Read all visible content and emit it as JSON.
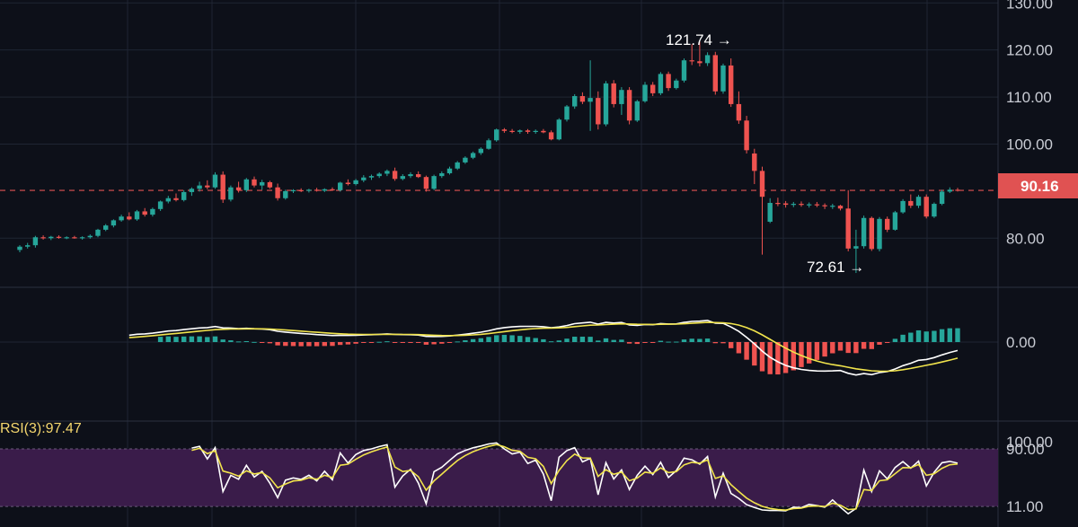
{
  "chart_data": [
    {
      "type": "candlestick",
      "panel": "price",
      "y_ticks": [
        "130.00",
        "120.00",
        "110.00",
        "100.00",
        "80.00"
      ],
      "y_tick_values": [
        130,
        120,
        110,
        100,
        80
      ],
      "ylim": [
        73,
        131
      ],
      "grid": true,
      "last_price": "90.16",
      "last_price_value": 90.16,
      "annotations": [
        {
          "text": "121.74 →",
          "value": 121.74,
          "kind": "high"
        },
        {
          "text": "72.61 →",
          "value": 72.61,
          "kind": "low"
        }
      ],
      "candles": [
        [
          77.5,
          78.5,
          77,
          78.2
        ],
        [
          78.2,
          79,
          77.8,
          78.5
        ],
        [
          78.5,
          80.5,
          78,
          80.2
        ],
        [
          80.2,
          80.6,
          79.7,
          80
        ],
        [
          80,
          80.5,
          79.6,
          80.3
        ],
        [
          80.3,
          80.6,
          79.9,
          80.1
        ],
        [
          80.1,
          80.4,
          79.8,
          80.2
        ],
        [
          80.2,
          80.5,
          79.9,
          80
        ],
        [
          80,
          80.4,
          79.7,
          80.2
        ],
        [
          80.2,
          80.8,
          79.9,
          80.5
        ],
        [
          80.5,
          82,
          80.2,
          81.8
        ],
        [
          81.8,
          83,
          81.5,
          82.7
        ],
        [
          82.7,
          84,
          82.3,
          83.8
        ],
        [
          83.8,
          85,
          83.5,
          84.6
        ],
        [
          84.6,
          85.5,
          83.8,
          84
        ],
        [
          84,
          86,
          83.7,
          85.7
        ],
        [
          85.7,
          86.4,
          84.6,
          85
        ],
        [
          85,
          86.5,
          84.6,
          86.2
        ],
        [
          86.2,
          88,
          85.8,
          87.8
        ],
        [
          87.8,
          89,
          87.4,
          88.5
        ],
        [
          88.5,
          89.5,
          87.8,
          88.1
        ],
        [
          88.1,
          90.2,
          87.8,
          89.8
        ],
        [
          89.8,
          90.8,
          89,
          90.5
        ],
        [
          90.5,
          92,
          89.9,
          91.2
        ],
        [
          91.2,
          92.3,
          90.4,
          90.8
        ],
        [
          90.8,
          94,
          90.5,
          93.5
        ],
        [
          93.5,
          94.2,
          87.5,
          88.2
        ],
        [
          88.2,
          91.2,
          87.8,
          90.8
        ],
        [
          90.8,
          92,
          89.7,
          90.2
        ],
        [
          90.2,
          92.8,
          89.8,
          92.5
        ],
        [
          92.5,
          93.1,
          90.8,
          91.2
        ],
        [
          91.2,
          92.4,
          90.3,
          91.9
        ],
        [
          91.9,
          92.2,
          90.5,
          90.8
        ],
        [
          90.8,
          91.6,
          88,
          88.5
        ],
        [
          88.5,
          90.3,
          88.2,
          90
        ],
        [
          90,
          90.4,
          89.6,
          90.2
        ],
        [
          90.2,
          90.6,
          89.8,
          90.1
        ],
        [
          90.1,
          90.5,
          89.7,
          90.3
        ],
        [
          90.3,
          90.7,
          89.9,
          90.1
        ],
        [
          90.1,
          90.6,
          89.8,
          90.4
        ],
        [
          90.4,
          90.8,
          90,
          90.2
        ],
        [
          90.2,
          92,
          89.9,
          91.8
        ],
        [
          91.8,
          92.5,
          91.2,
          91.5
        ],
        [
          91.5,
          92.6,
          91.2,
          92.3
        ],
        [
          92.3,
          93.4,
          91.9,
          92.9
        ],
        [
          92.9,
          93.5,
          92.4,
          93.2
        ],
        [
          93.2,
          94,
          92.8,
          93.7
        ],
        [
          93.7,
          94.6,
          93.2,
          94.3
        ],
        [
          94.3,
          95,
          92.2,
          92.6
        ],
        [
          92.6,
          93.6,
          92.3,
          93.2
        ],
        [
          93.2,
          94,
          92.8,
          93.6
        ],
        [
          93.6,
          94.2,
          92.8,
          93
        ],
        [
          93,
          93.3,
          89.9,
          90.5
        ],
        [
          90.5,
          93.5,
          90.2,
          93.2
        ],
        [
          93.2,
          94.2,
          92.8,
          93.8
        ],
        [
          93.8,
          95.2,
          93.5,
          94.8
        ],
        [
          94.8,
          96.4,
          94.5,
          96.1
        ],
        [
          96.1,
          97.4,
          95.8,
          97.1
        ],
        [
          97.1,
          98.4,
          96.8,
          98.1
        ],
        [
          98.1,
          99.3,
          97.7,
          99
        ],
        [
          99,
          101.2,
          98.8,
          100.8
        ],
        [
          100.8,
          103.3,
          100.5,
          103.1
        ],
        [
          103.1,
          103.4,
          102.4,
          102.8
        ],
        [
          102.8,
          103.2,
          102.3,
          102.6
        ],
        [
          102.6,
          103.1,
          102.2,
          102.9
        ],
        [
          102.9,
          103.2,
          102.2,
          102.6
        ],
        [
          102.6,
          103.1,
          102.2,
          102.8
        ],
        [
          102.8,
          103.2,
          102.3,
          102.5
        ],
        [
          102.5,
          102.9,
          100.8,
          101
        ],
        [
          101,
          105.5,
          100.8,
          105.2
        ],
        [
          105.2,
          108.3,
          104.8,
          108
        ],
        [
          108,
          110.6,
          107.5,
          110.2
        ],
        [
          110.2,
          111,
          108.5,
          109
        ],
        [
          109,
          117.8,
          102.8,
          109.8
        ],
        [
          109.8,
          111.2,
          103.1,
          104.2
        ],
        [
          104.2,
          113.4,
          103.8,
          112.9
        ],
        [
          112.9,
          113.6,
          107.8,
          108.5
        ],
        [
          108.5,
          112.1,
          106.2,
          111.5
        ],
        [
          111.5,
          112.1,
          104.2,
          105
        ],
        [
          105,
          109.4,
          104.7,
          109.1
        ],
        [
          109.1,
          113.2,
          108.8,
          112.6
        ],
        [
          112.6,
          113.2,
          110.2,
          110.8
        ],
        [
          110.8,
          115.3,
          110.4,
          114.9
        ],
        [
          114.9,
          115.4,
          111.3,
          111.9
        ],
        [
          111.9,
          113.9,
          111.6,
          113.5
        ],
        [
          113.5,
          118.2,
          113.1,
          117.8
        ],
        [
          117.8,
          121.2,
          116.8,
          117.6
        ],
        [
          117.6,
          121.74,
          116.5,
          117.2
        ],
        [
          117.2,
          119.5,
          116.6,
          118.9
        ],
        [
          118.9,
          119.6,
          110.5,
          111.2
        ],
        [
          111.2,
          117.1,
          110.7,
          116.7
        ],
        [
          116.7,
          118.2,
          107.9,
          108.5
        ],
        [
          108.5,
          111.2,
          104.3,
          105
        ],
        [
          105,
          106,
          98,
          98.7
        ],
        [
          98,
          99,
          91.5,
          94.3
        ],
        [
          94.3,
          95.2,
          76.5,
          88.8
        ],
        [
          83.5,
          88.5,
          83.2,
          87.5
        ],
        [
          87.5,
          88.6,
          86.8,
          87.4
        ],
        [
          87.4,
          87.9,
          86.5,
          87.1
        ],
        [
          87.1,
          87.7,
          86.6,
          87.3
        ],
        [
          87.3,
          87.8,
          86.7,
          87.1
        ],
        [
          87.1,
          87.6,
          86.5,
          87.2
        ],
        [
          87.2,
          87.7,
          86.6,
          87
        ],
        [
          87,
          87.4,
          86.2,
          86.8
        ],
        [
          86.8,
          87.3,
          86.2,
          86.9
        ],
        [
          86.9,
          87.1,
          85.9,
          86.3
        ],
        [
          86.3,
          90.2,
          77.2,
          77.8
        ],
        [
          77.8,
          81.8,
          72.61,
          78.3
        ],
        [
          78.3,
          84.8,
          77.8,
          84.3
        ],
        [
          84.3,
          84.6,
          77.3,
          77.7
        ],
        [
          77.7,
          84.5,
          77.2,
          84.1
        ],
        [
          84.1,
          84.6,
          81.3,
          81.8
        ],
        [
          81.8,
          85.8,
          81.6,
          85.5
        ],
        [
          85.5,
          88.3,
          85.2,
          87.9
        ],
        [
          87.9,
          89.3,
          86.4,
          86.9
        ],
        [
          86.9,
          89.2,
          86.4,
          88.8
        ],
        [
          88.8,
          89.3,
          84.2,
          84.6
        ],
        [
          84.6,
          87.6,
          84.3,
          87.3
        ],
        [
          87.3,
          90.3,
          87,
          89.9
        ],
        [
          89.9,
          90.8,
          89.6,
          90.3
        ],
        [
          90.3,
          90.7,
          89.9,
          90.16
        ]
      ]
    },
    {
      "type": "macd",
      "panel": "macd",
      "y_ticks": [
        "0.00"
      ],
      "y_tick_values": [
        0
      ],
      "ylim": [
        -14,
        6
      ],
      "line_colors": {
        "macd": "#ffffff",
        "signal": "#f1e44c"
      },
      "histogram_colors": {
        "positive": "#26a69a",
        "negative": "#ef5350"
      }
    },
    {
      "type": "line",
      "panel": "rsi",
      "label": "RSI(3):97.47",
      "y_ticks": [
        "100.00",
        "90.00",
        "11.00"
      ],
      "y_tick_values": [
        100,
        90,
        11
      ],
      "ylim": [
        0,
        106
      ],
      "band": [
        11,
        90
      ],
      "line_colors": {
        "rsi": "#ffffff",
        "signal": "#f1e44c"
      }
    }
  ],
  "colors": {
    "background": "#0d1019",
    "grid": "#1f2533",
    "up": "#26a69a",
    "down": "#ef5350",
    "price_tag": "#e05252",
    "rsi_band": "#3a1c4a"
  }
}
